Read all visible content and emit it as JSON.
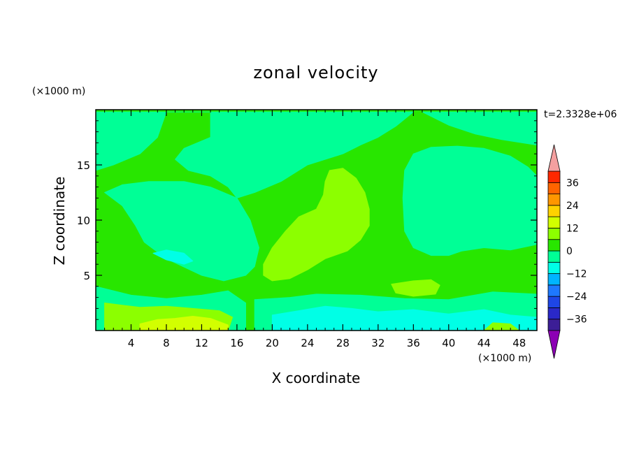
{
  "chart_data": {
    "type": "heatmap",
    "title": "zonal velocity",
    "xlabel": "X coordinate",
    "ylabel": "Z coordinate",
    "x_unit": "(×1000 m)",
    "y_unit": "(×1000 m)",
    "time_label": "t=2.3328e+06",
    "xlim": [
      0,
      50
    ],
    "ylim": [
      0,
      20
    ],
    "x_ticks": [
      4,
      8,
      12,
      16,
      20,
      24,
      28,
      32,
      36,
      40,
      44,
      48
    ],
    "y_ticks": [
      5,
      10,
      15
    ],
    "colorbar": {
      "levels": [
        -42,
        -36,
        -30,
        -24,
        -18,
        -12,
        -6,
        0,
        6,
        12,
        18,
        24,
        30,
        36,
        42
      ],
      "tick_values": [
        -36,
        -24,
        -12,
        0,
        12,
        24,
        36
      ],
      "tick_labels": [
        "−36",
        "−24",
        "−12",
        "0",
        "12",
        "24",
        "36"
      ],
      "colors": [
        "#3c1e96",
        "#2a28c8",
        "#1e46e6",
        "#1e78ff",
        "#00b4ff",
        "#00ffe6",
        "#00ff96",
        "#28e600",
        "#8cff00",
        "#d2ff00",
        "#ffd200",
        "#ff9600",
        "#ff6400",
        "#ff2800"
      ],
      "extend_low_color": "#8c00b4",
      "extend_high_color": "#f4a0a0"
    },
    "field_regions": [
      {
        "name": "background",
        "value": 3
      },
      {
        "name": "upper-left-jet",
        "value": -3,
        "polygon": [
          [
            0,
            14.5
          ],
          [
            2,
            15
          ],
          [
            5,
            16
          ],
          [
            7,
            17.5
          ],
          [
            8,
            19.8
          ],
          [
            13,
            19.8
          ],
          [
            13,
            17.5
          ],
          [
            10,
            16.5
          ],
          [
            9,
            15.5
          ],
          [
            10.5,
            14.5
          ],
          [
            13,
            14
          ],
          [
            15,
            13
          ],
          [
            16,
            12
          ],
          [
            18,
            12.5
          ],
          [
            21,
            13.5
          ],
          [
            24,
            15
          ],
          [
            28,
            16
          ],
          [
            30,
            16.8
          ],
          [
            32,
            17.5
          ],
          [
            34,
            18.5
          ],
          [
            36,
            19.8
          ],
          [
            0,
            19.8
          ]
        ]
      },
      {
        "name": "top-right",
        "value": -3,
        "polygon": [
          [
            37,
            19.8
          ],
          [
            40,
            18.6
          ],
          [
            43,
            17.8
          ],
          [
            46,
            17.3
          ],
          [
            50,
            16.8
          ],
          [
            50,
            19.8
          ]
        ]
      },
      {
        "name": "right-column",
        "value": -3,
        "polygon": [
          [
            35,
            14.5
          ],
          [
            36,
            16
          ],
          [
            38,
            16.6
          ],
          [
            41,
            16.7
          ],
          [
            44,
            16.5
          ],
          [
            47,
            15.8
          ],
          [
            49,
            14.8
          ],
          [
            50,
            14
          ],
          [
            50,
            7.8
          ],
          [
            47,
            7.3
          ],
          [
            44,
            7.5
          ],
          [
            41.5,
            7.2
          ],
          [
            40,
            6.8
          ],
          [
            38,
            6.8
          ],
          [
            36,
            7.5
          ],
          [
            35,
            9
          ],
          [
            34.8,
            12
          ]
        ]
      },
      {
        "name": "left-vortex",
        "value": -4,
        "polygon": [
          [
            1,
            12.5
          ],
          [
            3,
            11.3
          ],
          [
            4.5,
            9.5
          ],
          [
            5.5,
            8
          ],
          [
            8,
            6.5
          ],
          [
            12,
            5
          ],
          [
            14.5,
            4.5
          ],
          [
            17,
            5
          ],
          [
            18,
            5.8
          ],
          [
            18.5,
            7.5
          ],
          [
            17.5,
            10
          ],
          [
            16,
            12
          ],
          [
            13,
            13
          ],
          [
            10,
            13.5
          ],
          [
            6,
            13.5
          ],
          [
            3,
            13.2
          ]
        ]
      },
      {
        "name": "vortex-core",
        "value": -7,
        "polygon": [
          [
            6.5,
            7
          ],
          [
            8,
            6.4
          ],
          [
            10,
            6
          ],
          [
            11,
            6.3
          ],
          [
            10,
            7
          ],
          [
            8,
            7.3
          ]
        ]
      },
      {
        "name": "mid-positive",
        "value": 8,
        "polygon": [
          [
            19,
            6
          ],
          [
            20,
            7.5
          ],
          [
            21.5,
            9
          ],
          [
            23,
            10.3
          ],
          [
            25,
            11
          ],
          [
            25.8,
            12.3
          ],
          [
            26,
            13.5
          ],
          [
            26.5,
            14.5
          ],
          [
            28,
            14.7
          ],
          [
            29.5,
            13.8
          ],
          [
            30.5,
            12.5
          ],
          [
            31,
            11
          ],
          [
            31,
            9.5
          ],
          [
            30,
            8.2
          ],
          [
            28.5,
            7.2
          ],
          [
            26,
            6.5
          ],
          [
            24,
            5.5
          ],
          [
            22,
            4.7
          ],
          [
            20,
            4.5
          ],
          [
            19,
            5
          ]
        ]
      },
      {
        "name": "small-positive",
        "value": 8,
        "polygon": [
          [
            33.5,
            4.2
          ],
          [
            36,
            4.5
          ],
          [
            38,
            4.6
          ],
          [
            39,
            4.1
          ],
          [
            38.5,
            3.3
          ],
          [
            36,
            3.1
          ],
          [
            34,
            3.4
          ]
        ]
      },
      {
        "name": "lower-left-band",
        "value": -3,
        "polygon": [
          [
            0,
            4
          ],
          [
            4,
            3.2
          ],
          [
            8,
            2.9
          ],
          [
            12,
            3.2
          ],
          [
            15,
            3.6
          ],
          [
            17,
            2.5
          ],
          [
            17,
            0
          ],
          [
            0,
            0
          ]
        ]
      },
      {
        "name": "lower-mid-band",
        "value": -3,
        "polygon": [
          [
            18,
            2.8
          ],
          [
            22,
            3
          ],
          [
            25,
            3.3
          ],
          [
            30,
            3.2
          ],
          [
            35,
            2.9
          ],
          [
            40,
            2.8
          ],
          [
            45,
            3.5
          ],
          [
            50,
            3.3
          ],
          [
            50,
            0
          ],
          [
            18,
            0
          ]
        ]
      },
      {
        "name": "lower-left-positive",
        "value": 8,
        "polygon": [
          [
            1,
            2.5
          ],
          [
            3,
            2.3
          ],
          [
            5,
            2.1
          ],
          [
            8,
            2.2
          ],
          [
            11,
            2
          ],
          [
            14,
            1.8
          ],
          [
            15.5,
            1.2
          ],
          [
            15,
            0
          ],
          [
            1,
            0
          ]
        ]
      },
      {
        "name": "surface-max",
        "value": 12,
        "polygon": [
          [
            5,
            0.6
          ],
          [
            7,
            1
          ],
          [
            9,
            1.1
          ],
          [
            11,
            1.3
          ],
          [
            13,
            1.1
          ],
          [
            15,
            0.5
          ],
          [
            15,
            0
          ],
          [
            5,
            0
          ]
        ]
      },
      {
        "name": "lower-mid-negative",
        "value": -8,
        "polygon": [
          [
            20,
            1.4
          ],
          [
            23,
            1.8
          ],
          [
            26,
            2.2
          ],
          [
            29,
            2
          ],
          [
            32,
            1.7
          ],
          [
            36,
            1.9
          ],
          [
            40,
            1.5
          ],
          [
            44,
            1.9
          ],
          [
            47,
            1.4
          ],
          [
            50,
            1.2
          ],
          [
            50,
            0
          ],
          [
            20,
            0
          ]
        ]
      },
      {
        "name": "surface-min",
        "value": -11,
        "polygon": [
          [
            24,
            0
          ],
          [
            24.5,
            0.7
          ],
          [
            26.5,
            1
          ],
          [
            28,
            0.6
          ],
          [
            29,
            0
          ]
        ]
      },
      {
        "name": "right-surface-positive",
        "value": 8,
        "polygon": [
          [
            44,
            0
          ],
          [
            45,
            0.7
          ],
          [
            47,
            0.6
          ],
          [
            48,
            0
          ]
        ]
      }
    ]
  }
}
